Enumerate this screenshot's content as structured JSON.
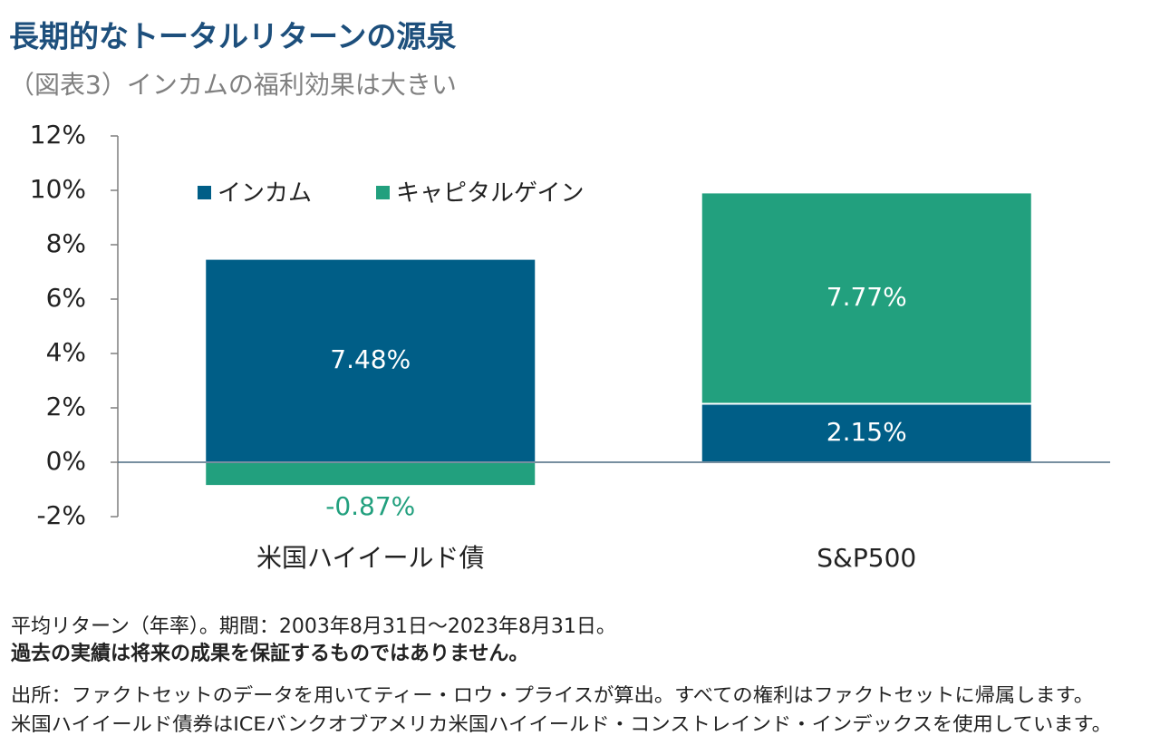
{
  "chart_data": {
    "type": "stacked_bar",
    "title": "長期的なトータルリターンの源泉",
    "subtitle": "（図表3）インカムの福利効果は大きい",
    "categories": [
      "米国ハイイールド債",
      "S&P500"
    ],
    "series": [
      {
        "name": "インカム",
        "color": "#005e87",
        "values": [
          7.48,
          2.15
        ],
        "value_labels": [
          "7.48%",
          "2.15%"
        ]
      },
      {
        "name": "キャピタルゲイン",
        "color": "#22a07e",
        "values": [
          -0.87,
          7.77
        ],
        "value_labels": [
          "-0.87%",
          "7.77%"
        ]
      }
    ],
    "ylim": [
      -2,
      12
    ],
    "yticks": [
      {
        "value": -2,
        "label": "-2%"
      },
      {
        "value": 0,
        "label": "0%"
      },
      {
        "value": 2,
        "label": "2%"
      },
      {
        "value": 4,
        "label": "4%"
      },
      {
        "value": 6,
        "label": "6%"
      },
      {
        "value": 8,
        "label": "8%"
      },
      {
        "value": 10,
        "label": "10%"
      },
      {
        "value": 12,
        "label": "12%"
      }
    ],
    "footnotes": [
      "平均リターン（年率）。期間：2003年8月31日～2023年8月31日。",
      "過去の実績は将来の成果を保証するものではありません。",
      "出所：ファクトセットのデータを用いてティー・ロウ・プライスが算出。すべての権利はファクトセットに帰属します。",
      "米国ハイイールド債券はICEバンクオブアメリカ米国ハイイールド・コンストレインド・インデックスを使用しています。"
    ]
  }
}
